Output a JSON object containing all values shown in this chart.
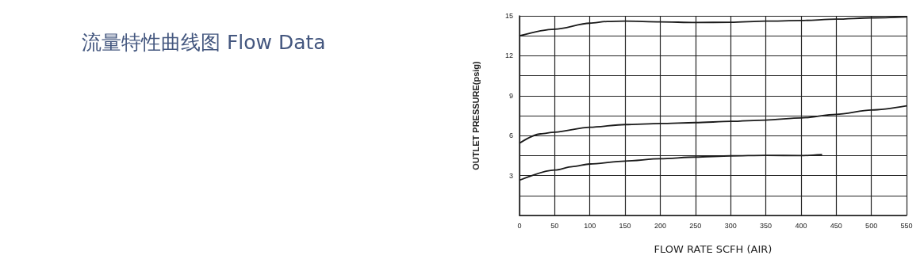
{
  "chart_data": {
    "type": "line",
    "title": "流量特性曲线图 Flow Data",
    "xlabel": "FLOW RATE SCFH (AIR)",
    "ylabel": "OUTLET PRESSURE(psig)",
    "xlim": [
      0,
      550
    ],
    "xticks": [
      0,
      50,
      100,
      150,
      200,
      250,
      300,
      350,
      400,
      450,
      500,
      550
    ],
    "ylim": [
      0,
      15
    ],
    "yticks": [
      {
        "value": 0,
        "label": null
      },
      {
        "value": 1.5,
        "label": null
      },
      3,
      {
        "value": 4.5,
        "label": null
      },
      6,
      {
        "value": 7.5,
        "label": null
      },
      9,
      {
        "value": 10.5,
        "label": null
      },
      12,
      {
        "value": 13.5,
        "label": null
      },
      15
    ],
    "grid": true,
    "marker": "none",
    "line_style": "solid",
    "series": [
      {
        "color": "#1a1a1a",
        "x": [
          0,
          50,
          100,
          125,
          150,
          200,
          250,
          300,
          350,
          400,
          450,
          500,
          550
        ],
        "values": [
          13.5,
          14.0,
          14.45,
          14.58,
          14.6,
          14.55,
          14.5,
          14.52,
          14.6,
          14.65,
          14.75,
          14.85,
          14.92
        ]
      },
      {
        "color": "#1a1a1a",
        "x": [
          0,
          30,
          50,
          100,
          150,
          200,
          250,
          300,
          350,
          400,
          450,
          500,
          550
        ],
        "values": [
          5.43,
          6.13,
          6.26,
          6.63,
          6.83,
          6.91,
          6.98,
          7.07,
          7.17,
          7.33,
          7.6,
          7.93,
          8.24
        ]
      },
      {
        "color": "#1a1a1a",
        "x": [
          0,
          50,
          75,
          100,
          150,
          200,
          250,
          300,
          350,
          400,
          430
        ],
        "values": [
          2.65,
          3.41,
          3.67,
          3.87,
          4.09,
          4.26,
          4.39,
          4.48,
          4.52,
          4.5,
          4.57
        ]
      }
    ]
  }
}
